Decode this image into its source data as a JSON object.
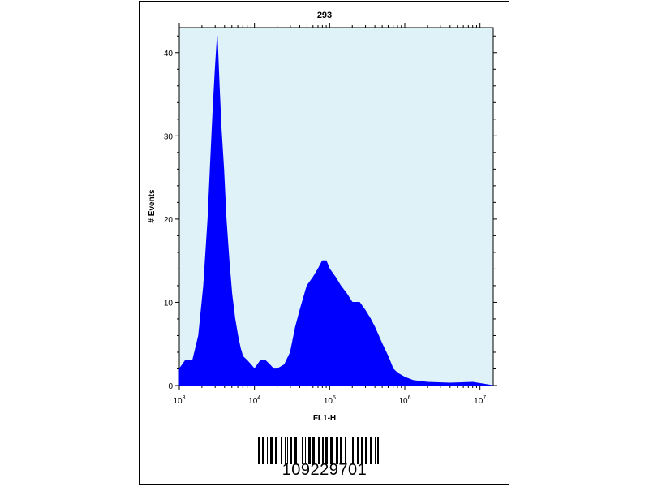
{
  "chart_data": {
    "type": "area",
    "title": "293",
    "xlabel": "FL1-H",
    "ylabel": "# Events",
    "xscale": "log",
    "xlim": [
      1000,
      15000000
    ],
    "ylim": [
      0,
      43
    ],
    "y_ticks": [
      "0",
      "10",
      "20",
      "30",
      "40"
    ],
    "x_ticks": [
      {
        "base": "10",
        "exp": "3"
      },
      {
        "base": "10",
        "exp": "4"
      },
      {
        "base": "10",
        "exp": "5"
      },
      {
        "base": "10",
        "exp": "6"
      },
      {
        "base": "10",
        "exp": "7"
      }
    ],
    "fill_color": "#0000ff",
    "background_color": "#dff2f8",
    "series": [
      {
        "x": [
          1000,
          1200,
          1500,
          1800,
          2100,
          2400,
          2600,
          2800,
          3000,
          3200,
          3400,
          3600,
          3900,
          4200,
          4600,
          5000,
          5500,
          6000,
          6500,
          7000,
          8000,
          9000,
          10000,
          12000,
          14000,
          16000,
          18000,
          20000,
          25000,
          30000,
          35000,
          40000,
          50000,
          60000,
          70000,
          80000,
          90000,
          100000,
          120000,
          140000,
          170000,
          200000,
          250000,
          300000,
          350000,
          400000,
          500000,
          600000,
          700000,
          800000,
          1000000,
          1300000,
          2000000,
          4000000,
          8000000,
          15000000
        ],
        "values": [
          2,
          3,
          3,
          6,
          12,
          20,
          27,
          33,
          38,
          42,
          36,
          31,
          26,
          20,
          15,
          11,
          8,
          6,
          4.5,
          3.5,
          3,
          2.5,
          2,
          3,
          3,
          2.5,
          2,
          2,
          2.5,
          4,
          7,
          9,
          12,
          13,
          14,
          15,
          15,
          14,
          13,
          12,
          11,
          10,
          10,
          9,
          8,
          7,
          5,
          3.5,
          2,
          1.5,
          1,
          0.6,
          0.4,
          0.3,
          0.4,
          0
        ]
      }
    ]
  },
  "barcode": {
    "number": "109229701"
  }
}
